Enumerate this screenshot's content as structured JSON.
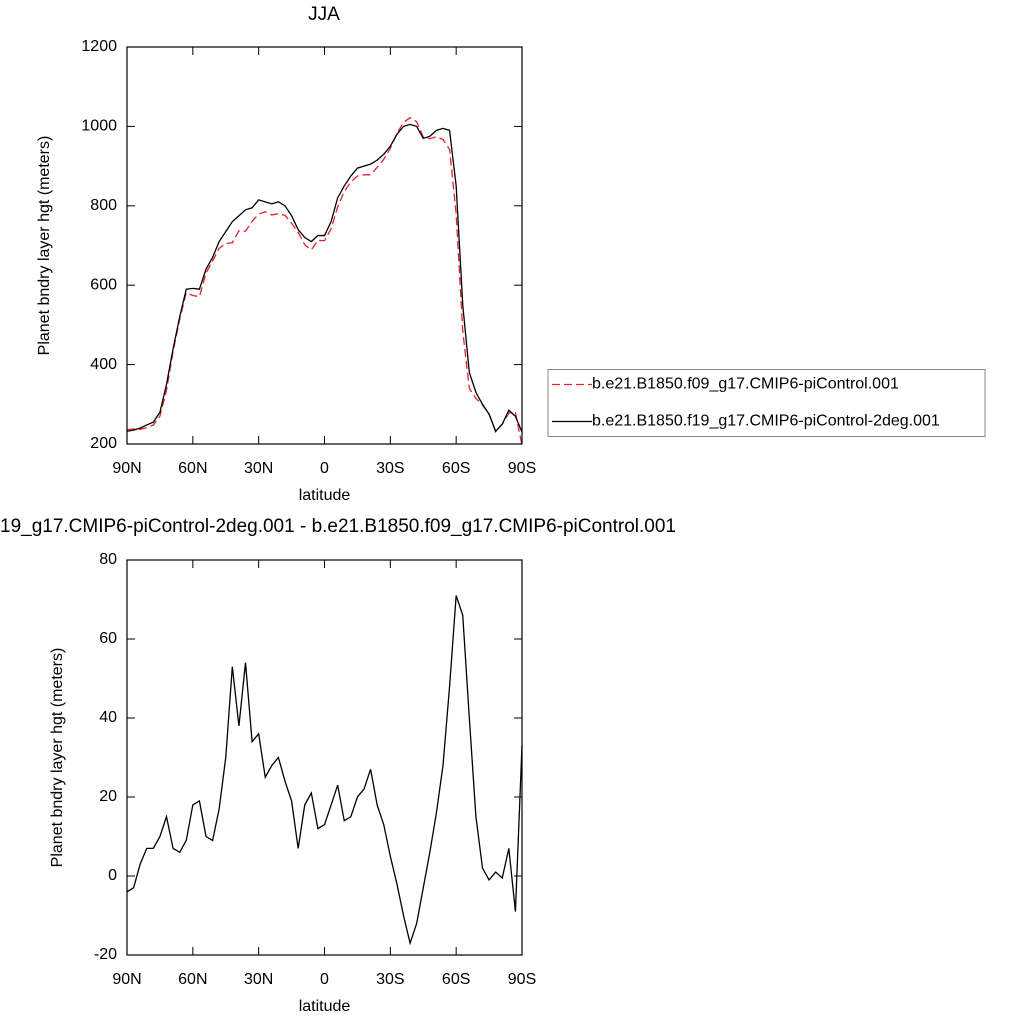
{
  "chart_data": [
    {
      "type": "line",
      "title": "JJA",
      "xlabel": "latitude",
      "ylabel": "Planet bndry layer hgt (meters)",
      "x": [
        90,
        87,
        84,
        81,
        78,
        75,
        72,
        69,
        66,
        63,
        60,
        57,
        54,
        51,
        48,
        45,
        42,
        39,
        36,
        33,
        30,
        27,
        24,
        21,
        18,
        15,
        12,
        9,
        6,
        3,
        0,
        -3,
        -6,
        -9,
        -12,
        -15,
        -18,
        -21,
        -24,
        -27,
        -30,
        -33,
        -36,
        -39,
        -42,
        -45,
        -48,
        -51,
        -54,
        -57,
        -60,
        -63,
        -66,
        -69,
        -72,
        -75,
        -78,
        -81,
        -84,
        -87,
        -90
      ],
      "series": [
        {
          "name": "b.e21.B1850.f09_g17.CMIP6-piControl.001",
          "color": "#e8202a",
          "line_style": "dashed",
          "values": [
            236,
            238,
            237,
            241,
            248,
            270,
            335,
            433,
            514,
            581,
            574,
            571,
            630,
            661,
            693,
            705,
            707,
            737,
            736,
            761,
            779,
            785,
            777,
            780,
            776,
            756,
            733,
            702,
            689,
            713,
            712,
            742,
            797,
            836,
            860,
            875,
            878,
            878,
            897,
            917,
            945,
            982,
            1010,
            1022,
            1012,
            973,
            969,
            974,
            967,
            942,
            779,
            484,
            340,
            315,
            298,
            276,
            231,
            250,
            278,
            279,
            197
          ]
        },
        {
          "name": "b.e21.B1850.f19_g17.CMIP6-piControl-2deg.001",
          "color": "#000000",
          "line_style": "solid",
          "values": [
            232,
            235,
            240,
            248,
            255,
            280,
            350,
            440,
            520,
            590,
            592,
            590,
            640,
            670,
            710,
            735,
            760,
            775,
            790,
            795,
            815,
            810,
            805,
            810,
            800,
            775,
            740,
            720,
            710,
            725,
            725,
            760,
            820,
            850,
            875,
            895,
            900,
            905,
            915,
            930,
            950,
            980,
            1000,
            1005,
            1000,
            970,
            975,
            990,
            995,
            990,
            850,
            550,
            380,
            330,
            300,
            275,
            232,
            250,
            285,
            270,
            230
          ]
        }
      ],
      "xlim": [
        90,
        -90
      ],
      "xticks": [
        {
          "value": 90,
          "label": "90N"
        },
        {
          "value": 60,
          "label": "60N"
        },
        {
          "value": 30,
          "label": "30N"
        },
        0,
        {
          "value": -30,
          "label": "30S"
        },
        {
          "value": -60,
          "label": "60S"
        },
        {
          "value": -90,
          "label": "90S"
        }
      ],
      "ylim": [
        200,
        1200
      ],
      "yticks": [
        200,
        400,
        600,
        800,
        1000,
        1200
      ],
      "legend": "right"
    },
    {
      "type": "line",
      "title": "19_g17.CMIP6-piControl-2deg.001 - b.e21.B1850.f09_g17.CMIP6-piControl.001",
      "xlabel": "latitude",
      "ylabel": "Planet bndry layer hgt (meters)",
      "x": [
        90,
        87,
        84,
        81,
        78,
        75,
        72,
        69,
        66,
        63,
        60,
        57,
        54,
        51,
        48,
        45,
        42,
        39,
        36,
        33,
        30,
        27,
        24,
        21,
        18,
        15,
        12,
        9,
        6,
        3,
        0,
        -3,
        -6,
        -9,
        -12,
        -15,
        -18,
        -21,
        -24,
        -27,
        -30,
        -33,
        -36,
        -39,
        -42,
        -45,
        -48,
        -51,
        -54,
        -57,
        -60,
        -63,
        -66,
        -69,
        -72,
        -75,
        -78,
        -81,
        -84,
        -87,
        -90
      ],
      "series": [
        {
          "color": "#000000",
          "line_style": "solid",
          "values": [
            -4,
            -3,
            3,
            7,
            7,
            10,
            15,
            7,
            6,
            9,
            18,
            19,
            10,
            9,
            17,
            30,
            53,
            38,
            54,
            34,
            36,
            25,
            28,
            30,
            24,
            19,
            7,
            18,
            21,
            12,
            13,
            18,
            23,
            14,
            15,
            20,
            22,
            27,
            18,
            13,
            5,
            -2,
            -10,
            -17,
            -12,
            -3,
            6,
            16,
            28,
            48,
            71,
            66,
            40,
            15,
            2,
            -1,
            1,
            -0.5,
            7,
            -9,
            33
          ]
        }
      ],
      "xlim": [
        90,
        -90
      ],
      "xticks": [
        {
          "value": 90,
          "label": "90N"
        },
        {
          "value": 60,
          "label": "60N"
        },
        {
          "value": 30,
          "label": "30N"
        },
        0,
        {
          "value": -30,
          "label": "30S"
        },
        {
          "value": -60,
          "label": "60S"
        },
        {
          "value": -90,
          "label": "90S"
        }
      ],
      "ylim": [
        -20,
        80
      ],
      "yticks": [
        -20,
        0,
        20,
        40,
        60,
        80
      ]
    }
  ]
}
